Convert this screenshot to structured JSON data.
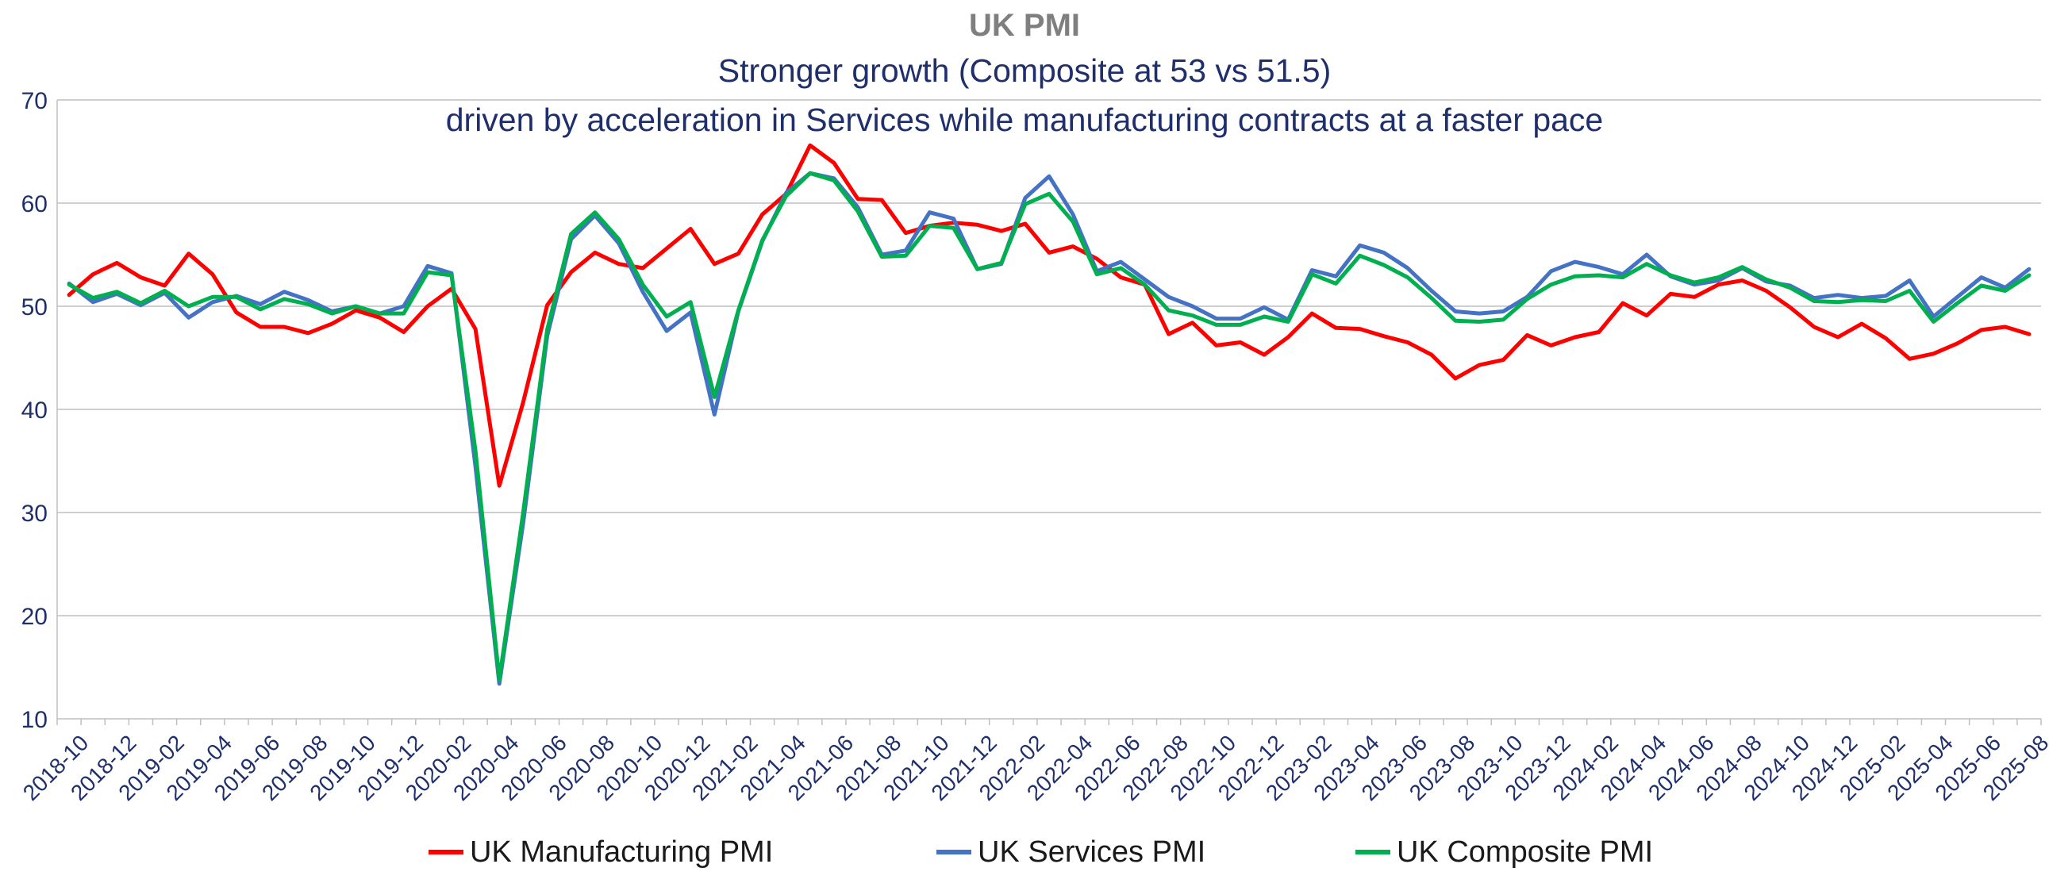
{
  "title": "UK PMI",
  "subtitle_line1": "Stronger growth (Composite at 53 vs 51.5)",
  "subtitle_line2": "driven by acceleration in Services while manufacturing contracts at a faster pace",
  "chart_data": {
    "type": "line",
    "ylim": [
      10,
      70
    ],
    "yticks": [
      10,
      20,
      30,
      40,
      50,
      60,
      70
    ],
    "grid": true,
    "legend_position": "bottom",
    "x": [
      "2018-10",
      "2018-11",
      "2018-12",
      "2019-01",
      "2019-02",
      "2019-03",
      "2019-04",
      "2019-05",
      "2019-06",
      "2019-07",
      "2019-08",
      "2019-09",
      "2019-10",
      "2019-11",
      "2019-12",
      "2020-01",
      "2020-02",
      "2020-03",
      "2020-04",
      "2020-05",
      "2020-06",
      "2020-07",
      "2020-08",
      "2020-09",
      "2020-10",
      "2020-11",
      "2020-12",
      "2021-01",
      "2021-02",
      "2021-03",
      "2021-04",
      "2021-05",
      "2021-06",
      "2021-07",
      "2021-08",
      "2021-09",
      "2021-10",
      "2021-11",
      "2021-12",
      "2022-01",
      "2022-02",
      "2022-03",
      "2022-04",
      "2022-05",
      "2022-06",
      "2022-07",
      "2022-08",
      "2022-09",
      "2022-10",
      "2022-11",
      "2022-12",
      "2023-01",
      "2023-02",
      "2023-03",
      "2023-04",
      "2023-05",
      "2023-06",
      "2023-07",
      "2023-08",
      "2023-09",
      "2023-10",
      "2023-11",
      "2023-12",
      "2024-01",
      "2024-02",
      "2024-03",
      "2024-04",
      "2024-05",
      "2024-06",
      "2024-07",
      "2024-08",
      "2024-09",
      "2024-10",
      "2024-11",
      "2024-12",
      "2025-01",
      "2025-02",
      "2025-03",
      "2025-04",
      "2025-05",
      "2025-06",
      "2025-07",
      "2025-08"
    ],
    "x_tick_labels": [
      "2018-10",
      "2018-12",
      "2019-02",
      "2019-04",
      "2019-06",
      "2019-08",
      "2019-10",
      "2019-12",
      "2020-02",
      "2020-04",
      "2020-06",
      "2020-08",
      "2020-10",
      "2020-12",
      "2021-02",
      "2021-04",
      "2021-06",
      "2021-08",
      "2021-10",
      "2021-12",
      "2022-02",
      "2022-04",
      "2022-06",
      "2022-08",
      "2022-10",
      "2022-12",
      "2023-02",
      "2023-04",
      "2023-06",
      "2023-08",
      "2023-10",
      "2023-12",
      "2024-02",
      "2024-04",
      "2024-06",
      "2024-08",
      "2024-10",
      "2024-12",
      "2025-02",
      "2025-04",
      "2025-06",
      "2025-08"
    ],
    "series": [
      {
        "name": "UK Manufacturing PMI",
        "color": "#ff0000",
        "values": [
          51.1,
          53.1,
          54.2,
          52.8,
          52.0,
          55.1,
          53.1,
          49.4,
          48.0,
          48.0,
          47.4,
          48.3,
          49.6,
          48.9,
          47.5,
          50.0,
          51.7,
          47.8,
          32.6,
          40.7,
          50.1,
          53.3,
          55.2,
          54.1,
          53.7,
          55.6,
          57.5,
          54.1,
          55.1,
          58.9,
          60.9,
          65.6,
          63.9,
          60.4,
          60.3,
          57.1,
          57.8,
          58.1,
          57.9,
          57.3,
          58.0,
          55.2,
          55.8,
          54.6,
          52.8,
          52.1,
          47.3,
          48.4,
          46.2,
          46.5,
          45.3,
          47.0,
          49.3,
          47.9,
          47.8,
          47.1,
          46.5,
          45.3,
          43.0,
          44.3,
          44.8,
          47.2,
          46.2,
          47.0,
          47.5,
          50.3,
          49.1,
          51.2,
          50.9,
          52.1,
          52.5,
          51.5,
          49.9,
          48.0,
          47.0,
          48.3,
          46.9,
          44.9,
          45.4,
          46.4,
          47.7,
          48.0,
          47.3
        ]
      },
      {
        "name": "UK Services PMI",
        "color": "#4472c4",
        "values": [
          52.2,
          50.4,
          51.2,
          50.1,
          51.3,
          48.9,
          50.4,
          51.0,
          50.2,
          51.4,
          50.6,
          49.5,
          50.0,
          49.3,
          50.0,
          53.9,
          53.2,
          34.5,
          13.4,
          29.0,
          47.1,
          56.5,
          58.8,
          56.1,
          51.4,
          47.6,
          49.4,
          39.5,
          49.5,
          56.3,
          61.0,
          62.9,
          62.4,
          59.6,
          55.0,
          55.4,
          59.1,
          58.5,
          53.6,
          54.1,
          60.5,
          62.6,
          58.9,
          53.4,
          54.3,
          52.6,
          50.9,
          50.0,
          48.8,
          48.8,
          49.9,
          48.7,
          53.5,
          52.9,
          55.9,
          55.2,
          53.7,
          51.5,
          49.5,
          49.3,
          49.5,
          50.9,
          53.4,
          54.3,
          53.8,
          53.1,
          55.0,
          52.9,
          52.1,
          52.5,
          53.7,
          52.4,
          52.0,
          50.8,
          51.1,
          50.8,
          51.0,
          52.5,
          49.0,
          50.9,
          52.8,
          51.8,
          53.6
        ]
      },
      {
        "name": "UK Composite PMI",
        "color": "#00b050",
        "values": [
          52.1,
          50.8,
          51.4,
          50.3,
          51.5,
          50.0,
          50.9,
          50.9,
          49.7,
          50.7,
          50.2,
          49.3,
          50.0,
          49.3,
          49.3,
          53.3,
          53.0,
          36.0,
          13.8,
          30.0,
          47.7,
          57.0,
          59.1,
          56.5,
          52.1,
          49.0,
          50.4,
          41.2,
          49.6,
          56.4,
          60.7,
          62.9,
          62.2,
          59.2,
          54.8,
          54.9,
          57.8,
          57.6,
          53.6,
          54.2,
          59.9,
          60.9,
          58.2,
          53.1,
          53.7,
          52.1,
          49.6,
          49.1,
          48.2,
          48.2,
          49.0,
          48.5,
          53.1,
          52.2,
          54.9,
          54.0,
          52.8,
          50.8,
          48.6,
          48.5,
          48.7,
          50.7,
          52.1,
          52.9,
          53.0,
          52.8,
          54.1,
          53.0,
          52.3,
          52.8,
          53.8,
          52.6,
          51.8,
          50.5,
          50.4,
          50.6,
          50.5,
          51.5,
          48.5,
          50.3,
          52.0,
          51.5,
          53.0
        ]
      }
    ]
  }
}
